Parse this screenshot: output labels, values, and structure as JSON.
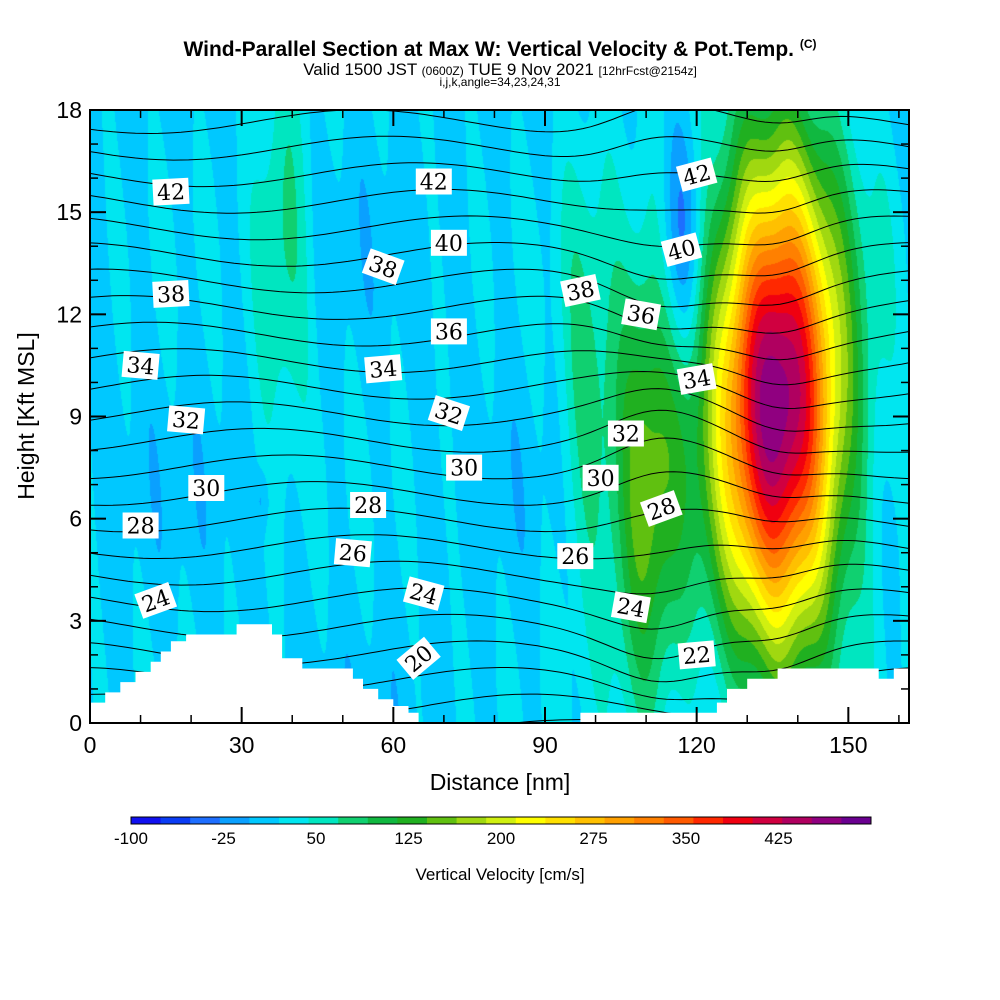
{
  "chart_data": {
    "type": "heatmap",
    "title": "Wind-Parallel Section at Max W: Vertical Velocity & Pot.Temp.",
    "title_mark": "(C)",
    "subtitle_main": "Valid 1500 JST",
    "subtitle_z": "(0600Z)",
    "subtitle_date": "TUE 9 Nov 2021",
    "subtitle_fcst": "[12hrFcst@2154z]",
    "subtitle2": "i,j,k,angle=34,23,24,31",
    "xlabel": "Distance [nm]",
    "ylabel": "Height [Kft MSL]",
    "xlim": [
      0,
      162
    ],
    "ylim": [
      0,
      18
    ],
    "x_ticks": [
      0,
      30,
      60,
      90,
      120,
      150
    ],
    "y_ticks": [
      0,
      3,
      6,
      9,
      12,
      15,
      18
    ],
    "colorbar": {
      "label": "Vertical Velocity [cm/s]",
      "min": -100,
      "max": 500,
      "step": 25,
      "tick_values": [
        -100,
        -25,
        50,
        125,
        200,
        275,
        350,
        425
      ],
      "tick_labels": [
        "-100",
        "-25",
        "50",
        "125",
        "200",
        "275",
        "350",
        "425"
      ],
      "colors": [
        "#1010f0",
        "#0a3cf5",
        "#1e6eff",
        "#0aa0ff",
        "#00c8ff",
        "#00e6f0",
        "#00e6c0",
        "#10d070",
        "#10b840",
        "#20b020",
        "#60c010",
        "#a0d810",
        "#d0f010",
        "#ffff00",
        "#ffe000",
        "#ffc000",
        "#ffa000",
        "#ff8000",
        "#ff5a00",
        "#ff2800",
        "#f00010",
        "#d00040",
        "#b00060",
        "#900080",
        "#6a0090"
      ]
    },
    "updraft_cores": [
      {
        "x": 136,
        "y": 9.5,
        "peak": 480,
        "sx": 9,
        "sy": 5.0
      },
      {
        "x": 110,
        "y": 7.0,
        "peak": 140,
        "sx": 5,
        "sy": 5.0
      },
      {
        "x": 38,
        "y": 14.0,
        "peak": 65,
        "sx": 4,
        "sy": 4.0
      },
      {
        "x": 98,
        "y": 10.0,
        "peak": 60,
        "sx": 4,
        "sy": 5.0
      }
    ],
    "downdraft_cores": [
      {
        "x": 117,
        "y": 14.0,
        "peak": -75,
        "sx": 3,
        "sy": 2.5
      },
      {
        "x": 34,
        "y": 6.6,
        "peak": -30,
        "sx": 1,
        "sy": 0.6
      }
    ],
    "terrain": [
      [
        0,
        0.6
      ],
      [
        3,
        0.6
      ],
      [
        3,
        0.9
      ],
      [
        6,
        0.9
      ],
      [
        6,
        1.2
      ],
      [
        9,
        1.2
      ],
      [
        9,
        1.5
      ],
      [
        12,
        1.5
      ],
      [
        12,
        1.8
      ],
      [
        14,
        1.8
      ],
      [
        14,
        2.1
      ],
      [
        16,
        2.1
      ],
      [
        16,
        2.4
      ],
      [
        19,
        2.4
      ],
      [
        19,
        2.6
      ],
      [
        29,
        2.6
      ],
      [
        29,
        2.9
      ],
      [
        36,
        2.9
      ],
      [
        36,
        2.6
      ],
      [
        38,
        2.6
      ],
      [
        38,
        1.9
      ],
      [
        42,
        1.9
      ],
      [
        42,
        1.6
      ],
      [
        52,
        1.6
      ],
      [
        52,
        1.3
      ],
      [
        54,
        1.3
      ],
      [
        54,
        1.0
      ],
      [
        57,
        1.0
      ],
      [
        57,
        0.7
      ],
      [
        60,
        0.7
      ],
      [
        60,
        0.5
      ],
      [
        63,
        0.5
      ],
      [
        63,
        0.3
      ],
      [
        65,
        0.3
      ],
      [
        65,
        0
      ],
      [
        97,
        0
      ],
      [
        97,
        0.3
      ],
      [
        124,
        0.3
      ],
      [
        124,
        0.6
      ],
      [
        126,
        0.6
      ],
      [
        126,
        1.0
      ],
      [
        130,
        1.0
      ],
      [
        130,
        1.3
      ],
      [
        136,
        1.3
      ],
      [
        136,
        1.6
      ],
      [
        156,
        1.6
      ],
      [
        156,
        1.3
      ],
      [
        159,
        1.3
      ],
      [
        159,
        1.6
      ],
      [
        162,
        1.6
      ]
    ],
    "theta_contours": {
      "interval": 1,
      "labeled": [
        {
          "value": "42",
          "x": 16,
          "y": 15.6,
          "angle": -3
        },
        {
          "value": "42",
          "x": 68,
          "y": 15.9,
          "angle": 0
        },
        {
          "value": "42",
          "x": 120,
          "y": 16.1,
          "angle": -15
        },
        {
          "value": "40",
          "x": 71,
          "y": 14.1,
          "angle": 0
        },
        {
          "value": "40",
          "x": 117,
          "y": 13.9,
          "angle": -15
        },
        {
          "value": "38",
          "x": 16,
          "y": 12.6,
          "angle": -3
        },
        {
          "value": "38",
          "x": 58,
          "y": 13.4,
          "angle": 20
        },
        {
          "value": "38",
          "x": 97,
          "y": 12.7,
          "angle": -12
        },
        {
          "value": "36",
          "x": 71,
          "y": 11.5,
          "angle": 0
        },
        {
          "value": "36",
          "x": 109,
          "y": 12.0,
          "angle": 10
        },
        {
          "value": "34",
          "x": 10,
          "y": 10.5,
          "angle": 5
        },
        {
          "value": "34",
          "x": 58,
          "y": 10.4,
          "angle": -5
        },
        {
          "value": "34",
          "x": 120,
          "y": 10.1,
          "angle": -10
        },
        {
          "value": "32",
          "x": 19,
          "y": 8.9,
          "angle": 5
        },
        {
          "value": "32",
          "x": 71,
          "y": 9.1,
          "angle": 18
        },
        {
          "value": "32",
          "x": 106,
          "y": 8.5,
          "angle": 0
        },
        {
          "value": "30",
          "x": 23,
          "y": 6.9,
          "angle": 0
        },
        {
          "value": "30",
          "x": 74,
          "y": 7.5,
          "angle": 0
        },
        {
          "value": "30",
          "x": 101,
          "y": 7.2,
          "angle": 0
        },
        {
          "value": "28",
          "x": 10,
          "y": 5.8,
          "angle": 0
        },
        {
          "value": "28",
          "x": 55,
          "y": 6.4,
          "angle": 0
        },
        {
          "value": "28",
          "x": 113,
          "y": 6.3,
          "angle": -20
        },
        {
          "value": "26",
          "x": 52,
          "y": 5.0,
          "angle": 5
        },
        {
          "value": "26",
          "x": 96,
          "y": 4.9,
          "angle": 0
        },
        {
          "value": "24",
          "x": 13,
          "y": 3.6,
          "angle": -20
        },
        {
          "value": "24",
          "x": 66,
          "y": 3.8,
          "angle": 15
        },
        {
          "value": "24",
          "x": 107,
          "y": 3.4,
          "angle": 10
        },
        {
          "value": "22",
          "x": 120,
          "y": 2.0,
          "angle": -5
        },
        {
          "value": "20",
          "x": 65,
          "y": 1.9,
          "angle": -40
        }
      ]
    }
  }
}
